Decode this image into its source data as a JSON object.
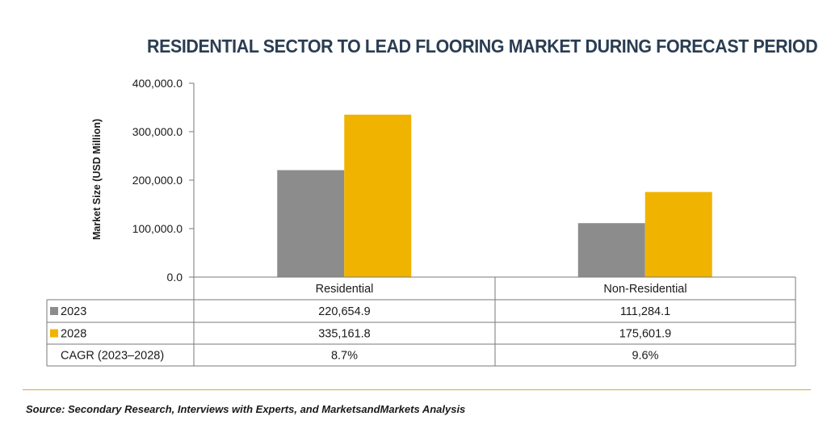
{
  "chart_data": {
    "type": "bar",
    "title": "RESIDENTIAL SECTOR TO LEAD FLOORING MARKET DURING FORECAST PERIOD",
    "ylabel": "Market Size (USD Million)",
    "ylim": [
      0,
      400000
    ],
    "yticks": [
      0,
      100000,
      200000,
      300000,
      400000
    ],
    "ytick_labels": [
      "0.0",
      "100,000.0",
      "200,000.0",
      "300,000.0",
      "400,000.0"
    ],
    "categories": [
      "Residential",
      "Non-Residential"
    ],
    "series": [
      {
        "name": "2023",
        "color": "#8c8c8c",
        "values": [
          220654.9,
          111284.1
        ],
        "labels": [
          "220,654.9",
          "111,284.1"
        ]
      },
      {
        "name": "2028",
        "color": "#f0b400",
        "values": [
          335161.8,
          175601.9
        ],
        "labels": [
          "335,161.8",
          "175,601.9"
        ]
      }
    ],
    "cagr": {
      "label": "CAGR (2023–2028)",
      "values": [
        "8.7%",
        "9.6%"
      ]
    },
    "legend": "data-table"
  },
  "source": "Source: Secondary Research, Interviews with Experts, and MarketsandMarkets Analysis"
}
